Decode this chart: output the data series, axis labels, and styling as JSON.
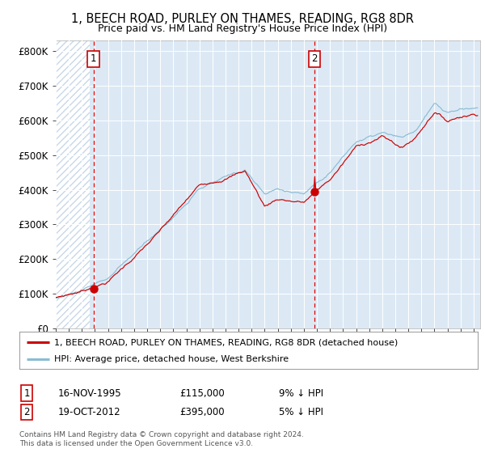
{
  "title1": "1, BEECH ROAD, PURLEY ON THAMES, READING, RG8 8DR",
  "title2": "Price paid vs. HM Land Registry's House Price Index (HPI)",
  "xlim_start": 1993.0,
  "xlim_end": 2025.5,
  "ylim": [
    0,
    830000
  ],
  "yticks": [
    0,
    100000,
    200000,
    300000,
    400000,
    500000,
    600000,
    700000,
    800000
  ],
  "ytick_labels": [
    "£0",
    "£100K",
    "£200K",
    "£300K",
    "£400K",
    "£500K",
    "£600K",
    "£700K",
    "£800K"
  ],
  "purchase1_x": 1995.88,
  "purchase1_y": 115000,
  "purchase2_x": 2012.8,
  "purchase2_y": 395000,
  "vline1_x": 1995.88,
  "vline2_x": 2012.8,
  "legend_line1": "1, BEECH ROAD, PURLEY ON THAMES, READING, RG8 8DR (detached house)",
  "legend_line2": "HPI: Average price, detached house, West Berkshire",
  "note1_date": "16-NOV-1995",
  "note1_price": "£115,000",
  "note1_hpi": "9% ↓ HPI",
  "note2_date": "19-OCT-2012",
  "note2_price": "£395,000",
  "note2_hpi": "5% ↓ HPI",
  "footer": "Contains HM Land Registry data © Crown copyright and database right 2024.\nThis data is licensed under the Open Government Licence v3.0.",
  "bg_color": "#dce9f5",
  "line_red": "#cc0000",
  "line_blue": "#8bbcd4",
  "dot_color": "#cc0000"
}
